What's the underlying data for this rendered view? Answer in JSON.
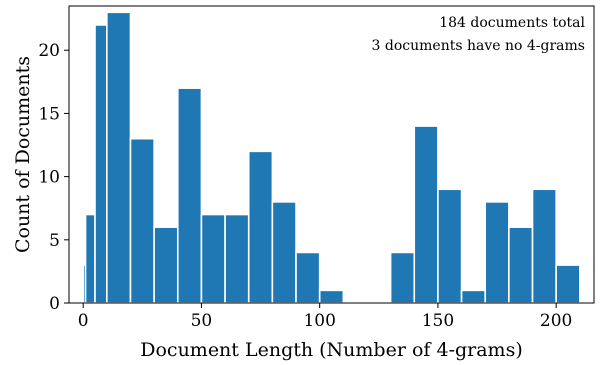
{
  "chart_data": {
    "type": "bar",
    "subtype": "histogram",
    "xlabel": "Document Length (Number of 4-grams)",
    "ylabel": "Count of Documents",
    "xlim": [
      -6,
      216
    ],
    "ylim": [
      0,
      23.5
    ],
    "xticks": [
      0,
      50,
      100,
      150,
      200
    ],
    "yticks": [
      0,
      5,
      10,
      15,
      20
    ],
    "bin_width": 10,
    "bar_color": "#1f77b4",
    "grid": false,
    "annotations": [
      "184 documents total",
      "3 documents have no 4-grams"
    ],
    "bins": [
      {
        "x0": 0,
        "x1": 1,
        "count": 3
      },
      {
        "x0": 1,
        "x1": 5,
        "count": 7
      },
      {
        "x0": 5,
        "x1": 10,
        "count": 22
      },
      {
        "x0": 10,
        "x1": 20,
        "count": 23
      },
      {
        "x0": 20,
        "x1": 30,
        "count": 13
      },
      {
        "x0": 30,
        "x1": 40,
        "count": 6
      },
      {
        "x0": 40,
        "x1": 50,
        "count": 17
      },
      {
        "x0": 50,
        "x1": 60,
        "count": 7
      },
      {
        "x0": 60,
        "x1": 70,
        "count": 7
      },
      {
        "x0": 70,
        "x1": 80,
        "count": 12
      },
      {
        "x0": 80,
        "x1": 90,
        "count": 8
      },
      {
        "x0": 90,
        "x1": 100,
        "count": 4
      },
      {
        "x0": 100,
        "x1": 110,
        "count": 1
      },
      {
        "x0": 130,
        "x1": 140,
        "count": 4
      },
      {
        "x0": 140,
        "x1": 150,
        "count": 14
      },
      {
        "x0": 150,
        "x1": 160,
        "count": 9
      },
      {
        "x0": 160,
        "x1": 170,
        "count": 1
      },
      {
        "x0": 170,
        "x1": 180,
        "count": 8
      },
      {
        "x0": 180,
        "x1": 190,
        "count": 6
      },
      {
        "x0": 190,
        "x1": 200,
        "count": 9
      },
      {
        "x0": 200,
        "x1": 210,
        "count": 3
      }
    ]
  }
}
